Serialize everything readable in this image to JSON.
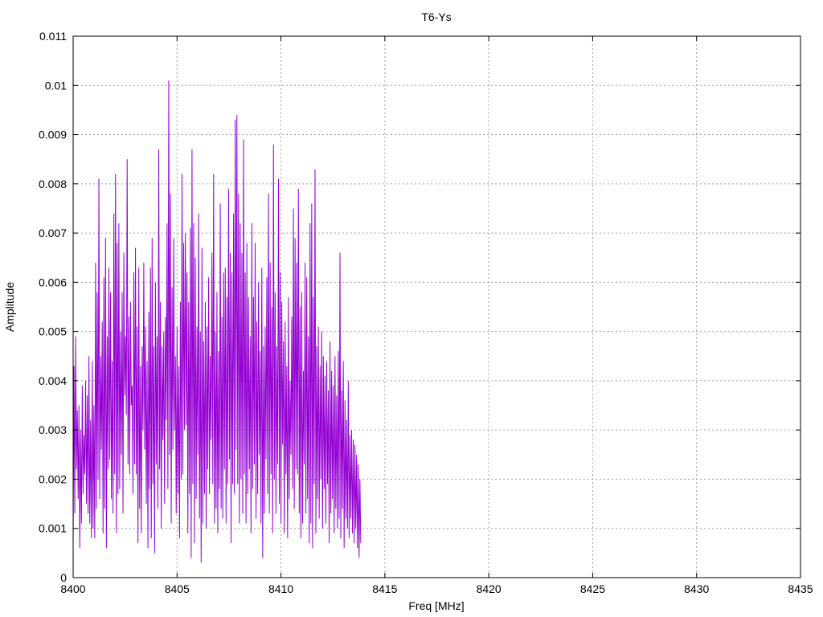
{
  "chart_data": {
    "type": "line",
    "title": "T6-Ys",
    "xlabel": "Freq [MHz]",
    "ylabel": "Amplitude",
    "xlim": [
      8400,
      8435
    ],
    "ylim": [
      0,
      0.011
    ],
    "x_ticks": [
      "8400",
      "8405",
      "8410",
      "8415",
      "8420",
      "8425",
      "8430",
      "8435"
    ],
    "y_ticks": [
      "0",
      "0.001",
      "0.002",
      "0.003",
      "0.004",
      "0.005",
      "0.006",
      "0.007",
      "0.008",
      "0.009",
      "0.01",
      "0.011"
    ],
    "grid": true,
    "legend": "none",
    "series_color": "#9400D3",
    "series": [
      {
        "x_start": 8400.0,
        "x_step": 0.04,
        "values": [
          0.0007,
          0.0043,
          0.0013,
          0.0049,
          0.0022,
          0.0034,
          0.0016,
          0.0035,
          0.0006,
          0.003,
          0.0011,
          0.0039,
          0.0017,
          0.0029,
          0.0021,
          0.004,
          0.0015,
          0.0037,
          0.0013,
          0.0045,
          0.0011,
          0.0032,
          0.0008,
          0.0044,
          0.001,
          0.0035,
          0.0008,
          0.0064,
          0.0014,
          0.0058,
          0.002,
          0.0081,
          0.0016,
          0.0045,
          0.0026,
          0.0052,
          0.0009,
          0.0061,
          0.0014,
          0.0069,
          0.0006,
          0.0049,
          0.0022,
          0.0063,
          0.0024,
          0.0058,
          0.0016,
          0.0044,
          0.0013,
          0.0074,
          0.0021,
          0.0082,
          0.0009,
          0.0068,
          0.0017,
          0.0072,
          0.0018,
          0.005,
          0.0025,
          0.0058,
          0.0013,
          0.0066,
          0.0037,
          0.0049,
          0.0033,
          0.0085,
          0.0023,
          0.0053,
          0.0021,
          0.0056,
          0.0035,
          0.0039,
          0.0017,
          0.0062,
          0.0023,
          0.0067,
          0.0021,
          0.0051,
          0.0007,
          0.0063,
          0.0014,
          0.0043,
          0.0009,
          0.0047,
          0.003,
          0.0064,
          0.0026,
          0.0051,
          0.0015,
          0.0044,
          0.0006,
          0.0054,
          0.0018,
          0.0063,
          0.0008,
          0.0069,
          0.0019,
          0.0047,
          0.0005,
          0.006,
          0.0023,
          0.0049,
          0.0014,
          0.0087,
          0.0022,
          0.0056,
          0.001,
          0.0047,
          0.0028,
          0.005,
          0.0015,
          0.0053,
          0.0032,
          0.0072,
          0.0018,
          0.0101,
          0.0025,
          0.0078,
          0.0011,
          0.0059,
          0.0026,
          0.0069,
          0.003,
          0.0045,
          0.0013,
          0.0051,
          0.0017,
          0.0043,
          0.0008,
          0.0056,
          0.002,
          0.0082,
          0.0021,
          0.0068,
          0.003,
          0.007,
          0.0031,
          0.0062,
          0.0009,
          0.0056,
          0.0017,
          0.0071,
          0.0004,
          0.0087,
          0.0019,
          0.0072,
          0.0007,
          0.0065,
          0.0016,
          0.0051,
          0.0025,
          0.0074,
          0.0012,
          0.005,
          0.0003,
          0.0067,
          0.0011,
          0.0048,
          0.0017,
          0.0056,
          0.001,
          0.0051,
          0.0022,
          0.0061,
          0.0017,
          0.0045,
          0.0028,
          0.0066,
          0.0019,
          0.0082,
          0.0011,
          0.005,
          0.0014,
          0.0058,
          0.0009,
          0.0046,
          0.0018,
          0.0076,
          0.0014,
          0.0053,
          0.0012,
          0.0062,
          0.0022,
          0.0063,
          0.0011,
          0.0057,
          0.0019,
          0.0079,
          0.0024,
          0.0066,
          0.0007,
          0.0062,
          0.0019,
          0.0074,
          0.0017,
          0.0093,
          0.0026,
          0.0094,
          0.0019,
          0.0078,
          0.0011,
          0.0072,
          0.002,
          0.0066,
          0.0013,
          0.0089,
          0.0021,
          0.0062,
          0.0011,
          0.0068,
          0.0017,
          0.0057,
          0.0022,
          0.0049,
          0.0009,
          0.0072,
          0.0018,
          0.0057,
          0.0023,
          0.0068,
          0.0012,
          0.0052,
          0.0017,
          0.006,
          0.0025,
          0.0046,
          0.0011,
          0.0063,
          0.0004,
          0.0047,
          0.0013,
          0.0051,
          0.0024,
          0.0061,
          0.0017,
          0.0078,
          0.0013,
          0.0064,
          0.0021,
          0.0055,
          0.0009,
          0.0088,
          0.002,
          0.0058,
          0.0013,
          0.0047,
          0.0023,
          0.0081,
          0.0015,
          0.0062,
          0.0011,
          0.0056,
          0.0027,
          0.0048,
          0.0009,
          0.0052,
          0.0021,
          0.0043,
          0.0008,
          0.0057,
          0.0016,
          0.004,
          0.0025,
          0.0053,
          0.0018,
          0.0075,
          0.0014,
          0.0069,
          0.0022,
          0.0064,
          0.0021,
          0.0079,
          0.0013,
          0.0055,
          0.0008,
          0.0058,
          0.0011,
          0.0042,
          0.0023,
          0.0064,
          0.0013,
          0.0061,
          0.0016,
          0.0049,
          0.0007,
          0.0072,
          0.0011,
          0.0076,
          0.0006,
          0.0057,
          0.0019,
          0.0083,
          0.0009,
          0.0047,
          0.0016,
          0.0051,
          0.0012,
          0.0043,
          0.002,
          0.005,
          0.001,
          0.0045,
          0.0018,
          0.0041,
          0.0011,
          0.0044,
          0.0019,
          0.0038,
          0.0007,
          0.0048,
          0.0013,
          0.0042,
          0.0016,
          0.0039,
          0.0009,
          0.0045,
          0.0014,
          0.0037,
          0.001,
          0.0046,
          0.0012,
          0.0066,
          0.0008,
          0.0038,
          0.0014,
          0.0044,
          0.0006,
          0.0036,
          0.0012,
          0.0032,
          0.001,
          0.004,
          0.0008,
          0.0029,
          0.0012,
          0.003,
          0.0009,
          0.0028,
          0.0007,
          0.0027,
          0.001,
          0.0025,
          0.0006,
          0.0023,
          0.0004,
          0.002,
          0.0007
        ]
      }
    ]
  }
}
